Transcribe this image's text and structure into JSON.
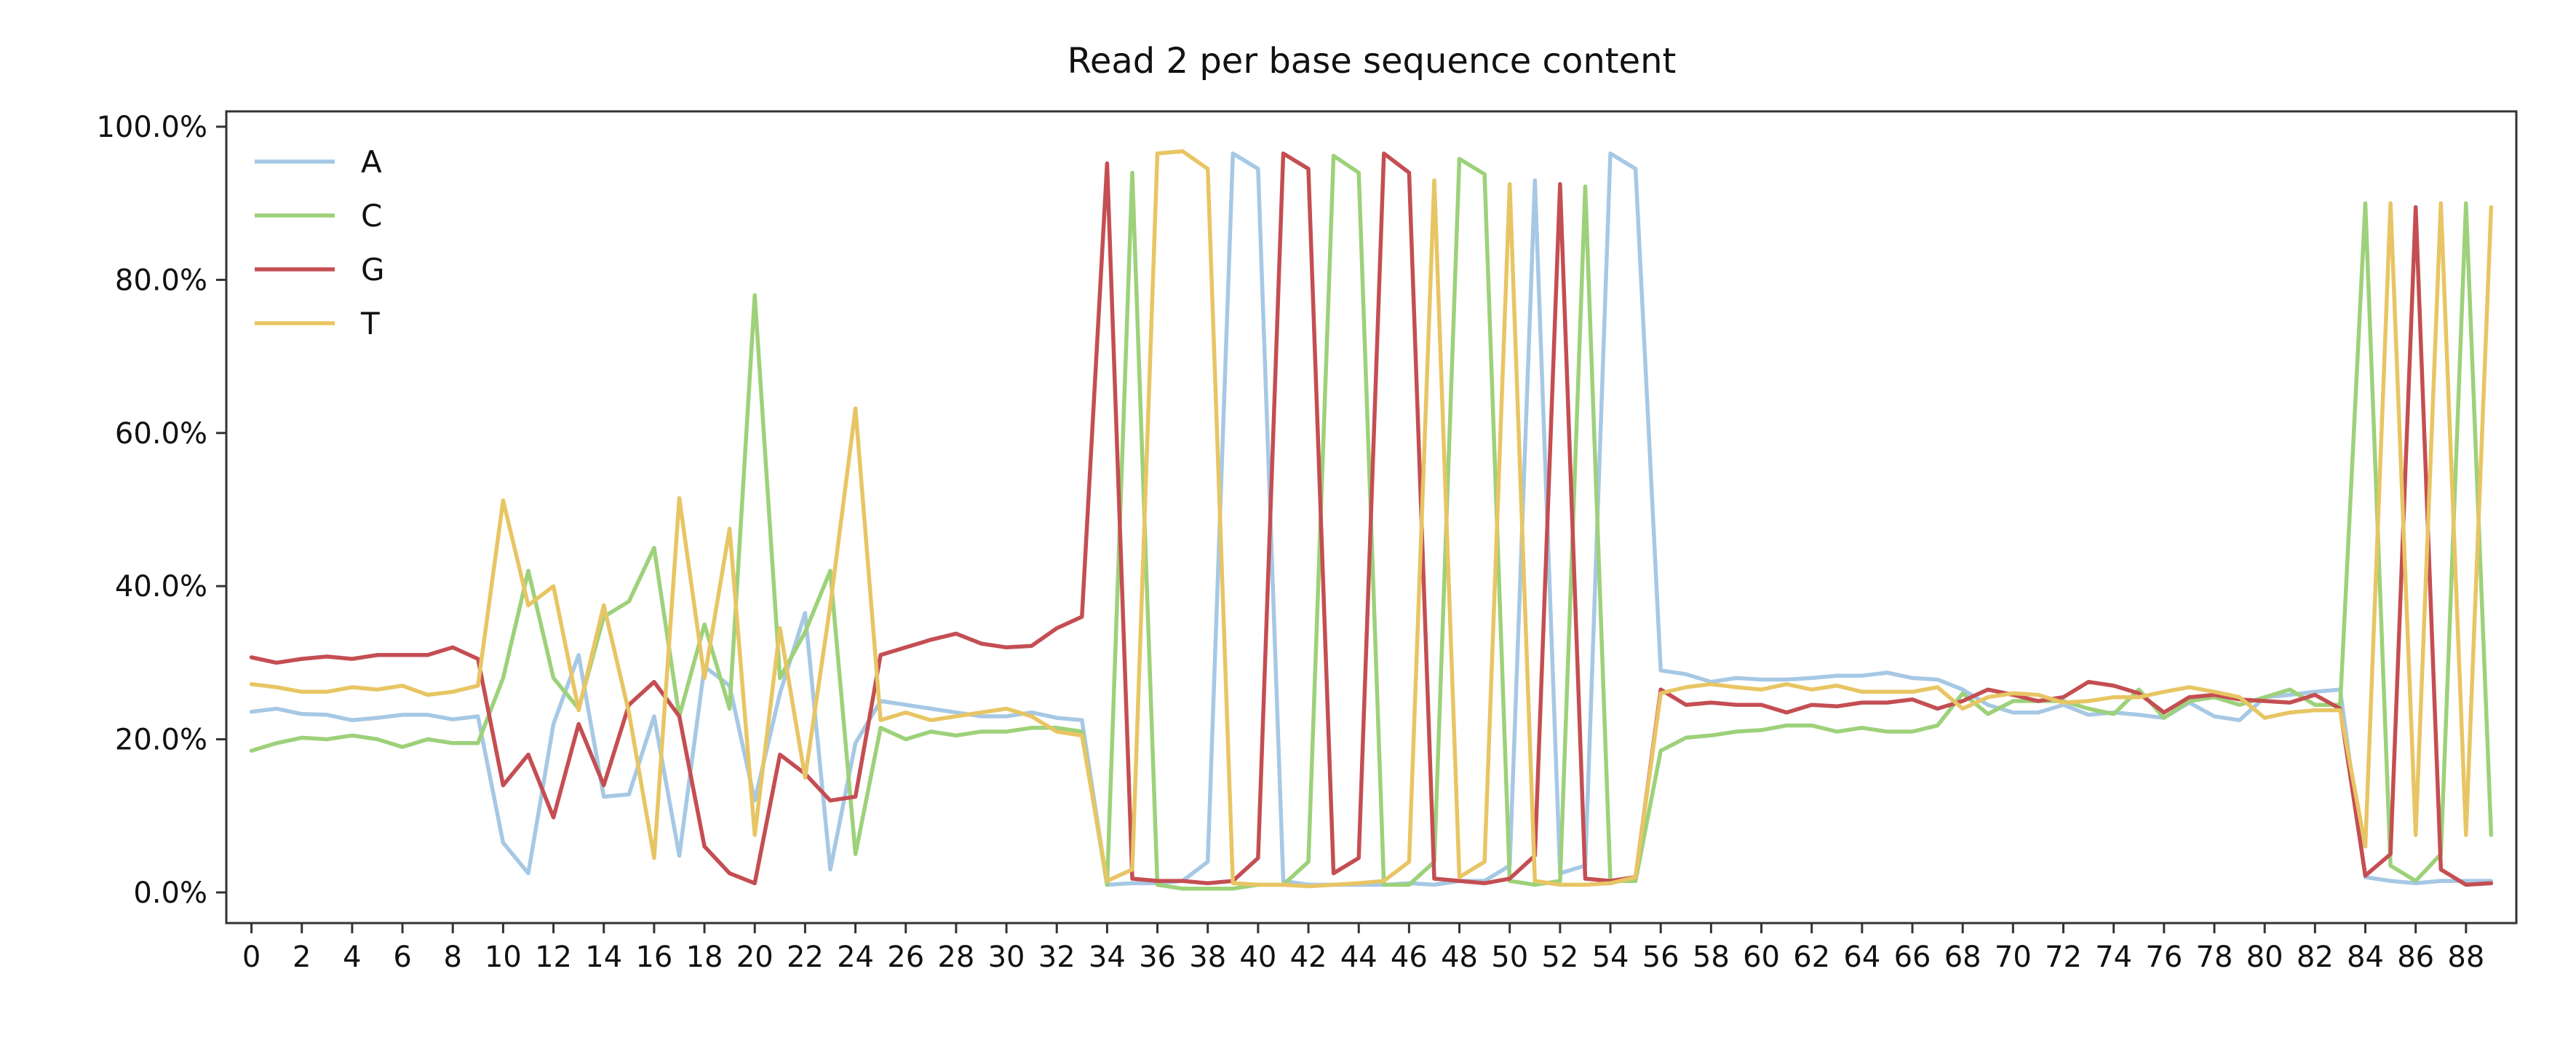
{
  "chart_data": {
    "type": "line",
    "title": "Read 2 per base sequence content",
    "xlabel": "",
    "ylabel": "",
    "xlim": [
      -1,
      90
    ],
    "ylim": [
      -0.04,
      1.02
    ],
    "grid": false,
    "legend_position": "top-left",
    "x_ticks": [
      0,
      2,
      4,
      6,
      8,
      10,
      12,
      14,
      16,
      18,
      20,
      22,
      24,
      26,
      28,
      30,
      32,
      34,
      36,
      38,
      40,
      42,
      44,
      46,
      48,
      50,
      52,
      54,
      56,
      58,
      60,
      62,
      64,
      66,
      68,
      70,
      72,
      74,
      76,
      78,
      80,
      82,
      84,
      86,
      88
    ],
    "y_ticks": [
      0.0,
      0.2,
      0.4,
      0.6,
      0.8,
      1.0
    ],
    "y_tick_labels": [
      "0.0%",
      "20.0%",
      "40.0%",
      "60.0%",
      "80.0%",
      "100.0%"
    ],
    "x": [
      0,
      1,
      2,
      3,
      4,
      5,
      6,
      7,
      8,
      9,
      10,
      11,
      12,
      13,
      14,
      15,
      16,
      17,
      18,
      19,
      20,
      21,
      22,
      23,
      24,
      25,
      26,
      27,
      28,
      29,
      30,
      31,
      32,
      33,
      34,
      35,
      36,
      37,
      38,
      39,
      40,
      41,
      42,
      43,
      44,
      45,
      46,
      47,
      48,
      49,
      50,
      51,
      52,
      53,
      54,
      55,
      56,
      57,
      58,
      59,
      60,
      61,
      62,
      63,
      64,
      65,
      66,
      67,
      68,
      69,
      70,
      71,
      72,
      73,
      74,
      75,
      76,
      77,
      78,
      79,
      80,
      81,
      82,
      83,
      84,
      85,
      86,
      87,
      88,
      89
    ],
    "series": [
      {
        "name": "A",
        "color": "#a6c8e4",
        "values": [
          0.236,
          0.24,
          0.233,
          0.232,
          0.225,
          0.228,
          0.232,
          0.232,
          0.226,
          0.23,
          0.065,
          0.025,
          0.22,
          0.31,
          0.125,
          0.128,
          0.23,
          0.048,
          0.295,
          0.27,
          0.12,
          0.26,
          0.365,
          0.03,
          0.195,
          0.25,
          0.245,
          0.24,
          0.235,
          0.23,
          0.23,
          0.235,
          0.228,
          0.225,
          0.01,
          0.012,
          0.012,
          0.015,
          0.04,
          0.965,
          0.945,
          0.015,
          0.01,
          0.01,
          0.01,
          0.01,
          0.012,
          0.01,
          0.015,
          0.015,
          0.035,
          0.93,
          0.025,
          0.035,
          0.965,
          0.945,
          0.29,
          0.285,
          0.275,
          0.28,
          0.278,
          0.278,
          0.28,
          0.283,
          0.283,
          0.287,
          0.28,
          0.278,
          0.265,
          0.245,
          0.235,
          0.235,
          0.245,
          0.232,
          0.235,
          0.232,
          0.228,
          0.248,
          0.23,
          0.225,
          0.255,
          0.258,
          0.262,
          0.265,
          0.02,
          0.015,
          0.012,
          0.015,
          0.015,
          0.015
        ]
      },
      {
        "name": "C",
        "color": "#9dd17a",
        "values": [
          0.185,
          0.195,
          0.202,
          0.2,
          0.205,
          0.2,
          0.19,
          0.2,
          0.195,
          0.195,
          0.28,
          0.42,
          0.28,
          0.24,
          0.36,
          0.38,
          0.45,
          0.23,
          0.35,
          0.24,
          0.78,
          0.28,
          0.34,
          0.42,
          0.05,
          0.215,
          0.2,
          0.21,
          0.205,
          0.21,
          0.21,
          0.215,
          0.215,
          0.21,
          0.01,
          0.94,
          0.01,
          0.005,
          0.005,
          0.005,
          0.01,
          0.01,
          0.04,
          0.962,
          0.94,
          0.01,
          0.01,
          0.04,
          0.958,
          0.938,
          0.015,
          0.01,
          0.015,
          0.922,
          0.015,
          0.015,
          0.185,
          0.202,
          0.205,
          0.21,
          0.212,
          0.218,
          0.218,
          0.21,
          0.215,
          0.21,
          0.21,
          0.218,
          0.26,
          0.233,
          0.25,
          0.25,
          0.25,
          0.24,
          0.233,
          0.265,
          0.228,
          0.25,
          0.255,
          0.245,
          0.255,
          0.265,
          0.245,
          0.245,
          0.9,
          0.035,
          0.015,
          0.05,
          0.9,
          0.075
        ]
      },
      {
        "name": "G",
        "color": "#c44e52",
        "values": [
          0.307,
          0.3,
          0.305,
          0.308,
          0.305,
          0.31,
          0.31,
          0.31,
          0.32,
          0.305,
          0.14,
          0.18,
          0.098,
          0.22,
          0.14,
          0.245,
          0.275,
          0.23,
          0.06,
          0.025,
          0.012,
          0.18,
          0.155,
          0.12,
          0.125,
          0.31,
          0.32,
          0.33,
          0.338,
          0.325,
          0.32,
          0.322,
          0.345,
          0.36,
          0.952,
          0.018,
          0.015,
          0.015,
          0.012,
          0.015,
          0.045,
          0.965,
          0.945,
          0.025,
          0.045,
          0.965,
          0.94,
          0.018,
          0.015,
          0.012,
          0.018,
          0.048,
          0.925,
          0.018,
          0.015,
          0.02,
          0.265,
          0.245,
          0.248,
          0.245,
          0.245,
          0.235,
          0.245,
          0.243,
          0.248,
          0.248,
          0.252,
          0.24,
          0.25,
          0.265,
          0.258,
          0.25,
          0.255,
          0.275,
          0.27,
          0.26,
          0.235,
          0.255,
          0.258,
          0.252,
          0.25,
          0.248,
          0.258,
          0.24,
          0.022,
          0.05,
          0.895,
          0.03,
          0.01,
          0.012
        ]
      },
      {
        "name": "T",
        "color": "#e8c564",
        "values": [
          0.272,
          0.268,
          0.262,
          0.262,
          0.268,
          0.265,
          0.27,
          0.258,
          0.262,
          0.27,
          0.512,
          0.375,
          0.4,
          0.238,
          0.375,
          0.235,
          0.045,
          0.515,
          0.28,
          0.475,
          0.075,
          0.345,
          0.15,
          0.375,
          0.632,
          0.225,
          0.235,
          0.225,
          0.23,
          0.235,
          0.24,
          0.23,
          0.21,
          0.205,
          0.015,
          0.03,
          0.965,
          0.968,
          0.945,
          0.012,
          0.01,
          0.01,
          0.008,
          0.01,
          0.012,
          0.015,
          0.04,
          0.93,
          0.02,
          0.04,
          0.925,
          0.015,
          0.01,
          0.01,
          0.012,
          0.02,
          0.26,
          0.268,
          0.272,
          0.268,
          0.265,
          0.272,
          0.265,
          0.27,
          0.262,
          0.262,
          0.262,
          0.268,
          0.24,
          0.255,
          0.26,
          0.258,
          0.248,
          0.25,
          0.255,
          0.255,
          0.262,
          0.268,
          0.262,
          0.255,
          0.228,
          0.235,
          0.238,
          0.238,
          0.06,
          0.9,
          0.075,
          0.9,
          0.075,
          0.895
        ]
      }
    ]
  }
}
